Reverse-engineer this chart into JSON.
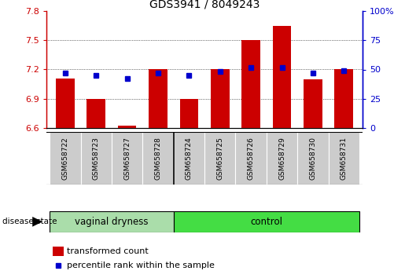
{
  "title": "GDS3941 / 8049243",
  "samples": [
    "GSM658722",
    "GSM658723",
    "GSM658727",
    "GSM658728",
    "GSM658724",
    "GSM658725",
    "GSM658726",
    "GSM658729",
    "GSM658730",
    "GSM658731"
  ],
  "group_labels": [
    "vaginal dryness",
    "control"
  ],
  "vd_count": 4,
  "transformed_counts": [
    7.11,
    6.9,
    6.62,
    7.2,
    6.9,
    7.2,
    7.5,
    7.65,
    7.1,
    7.2
  ],
  "percentile_ranks": [
    47,
    45,
    42,
    47,
    45,
    48,
    52,
    52,
    47,
    49
  ],
  "ylim": [
    6.6,
    7.8
  ],
  "yticks": [
    6.6,
    6.9,
    7.2,
    7.5,
    7.8
  ],
  "right_yticks": [
    0,
    25,
    50,
    75,
    100
  ],
  "bar_color": "#cc0000",
  "dot_color": "#0000cc",
  "vd_color": "#aaddaa",
  "ctrl_color": "#44dd44",
  "label_area_color": "#cccccc",
  "legend_bar_label": "transformed count",
  "legend_dot_label": "percentile rank within the sample",
  "disease_state_label": "disease state"
}
